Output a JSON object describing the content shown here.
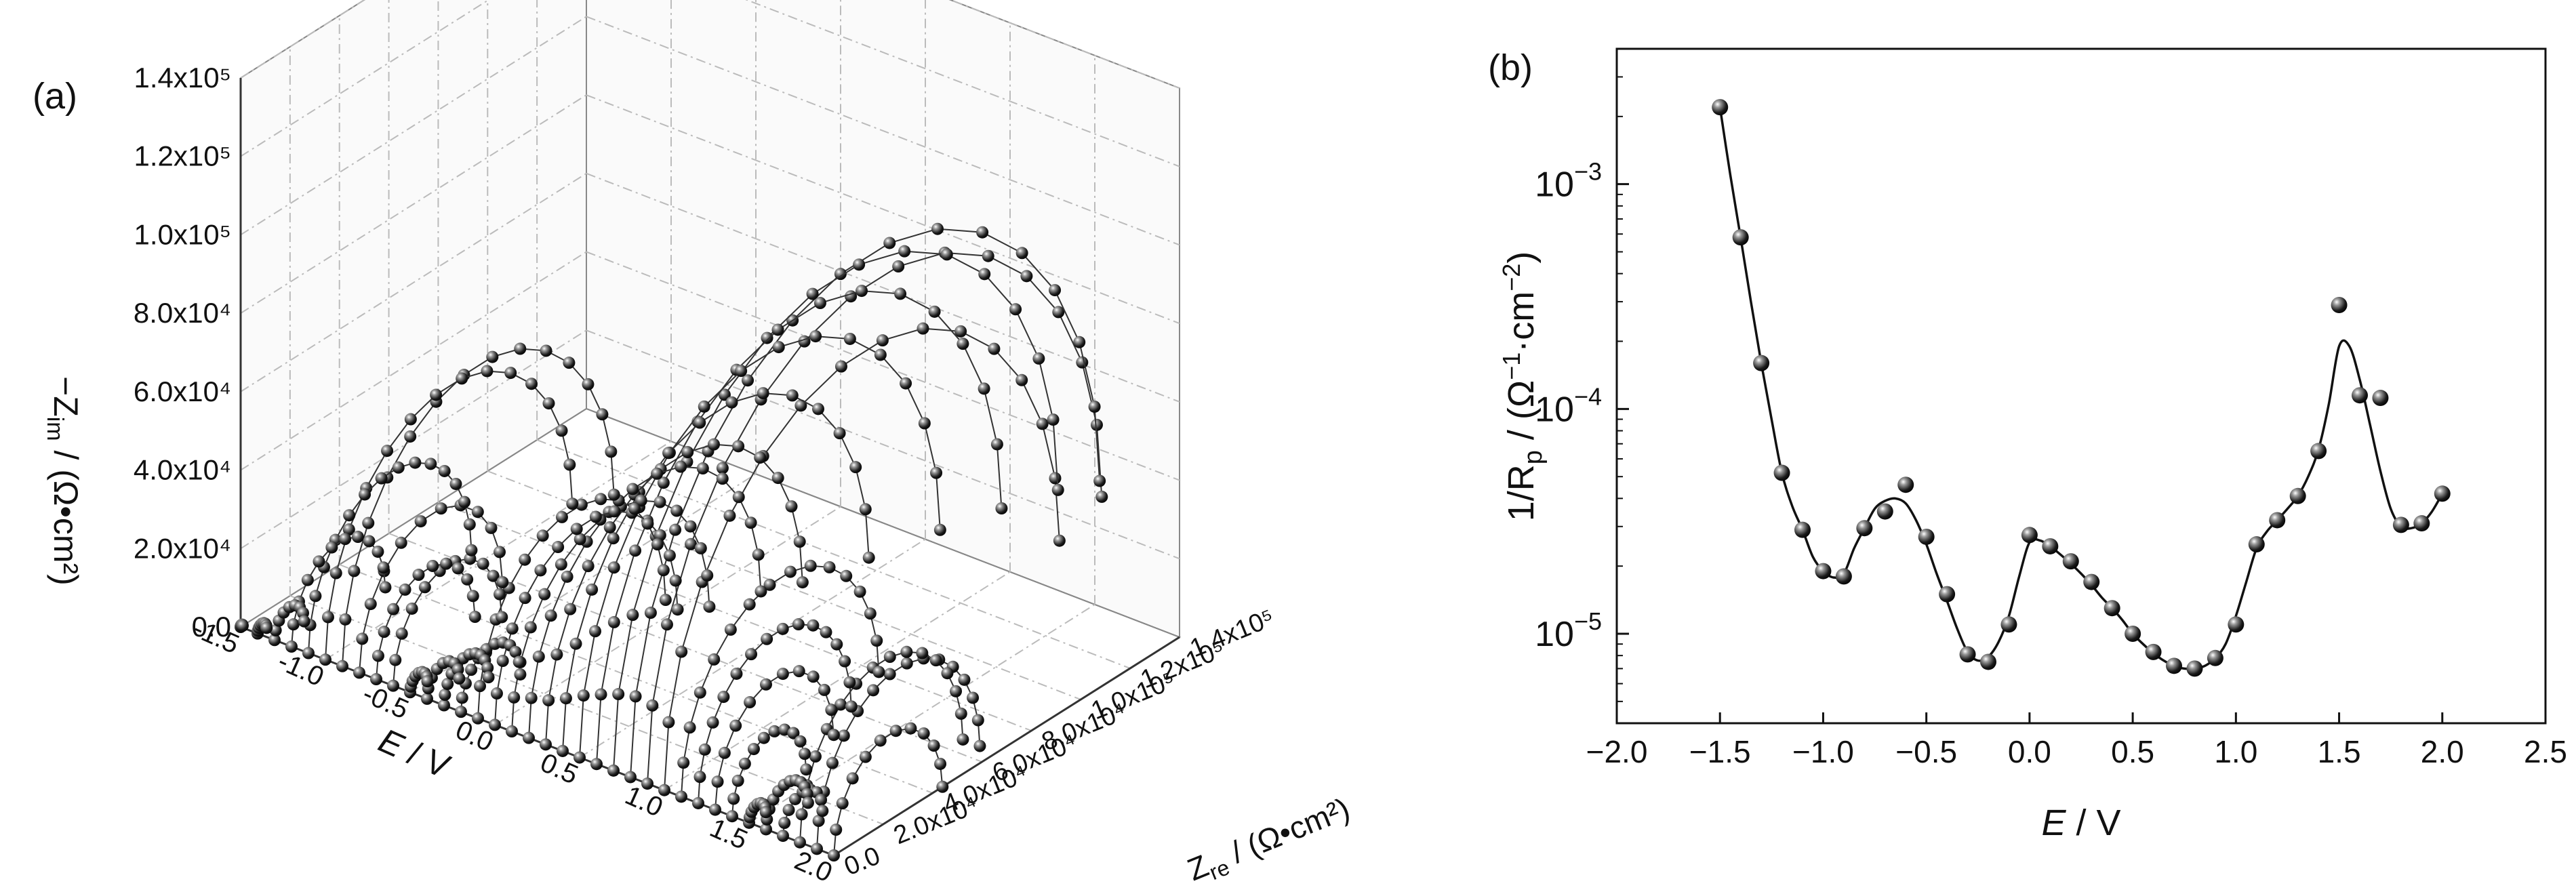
{
  "chart_data": [
    {
      "panel": "(a)",
      "type": "scatter",
      "projection": "3d",
      "x_axis": {
        "label_main": "E",
        "label_unit": " / V",
        "ticks": [
          "-1.5",
          "-1.0",
          "-0.5",
          "0.0",
          "0.5",
          "1.0",
          "1.5",
          "2.0"
        ],
        "range": [
          -1.5,
          2.0
        ]
      },
      "y_axis": {
        "label_main": "Z",
        "label_sub": "re",
        "label_unit": " / (Ω•cm²)",
        "ticks": [
          "0.0",
          "2.0x10⁴",
          "4.0x10⁴",
          "6.0x10⁴",
          "8.0x10⁴",
          "1.0x10⁵",
          "1.2x10⁵",
          "1.4x10⁵"
        ],
        "range": [
          0,
          140000
        ]
      },
      "z_axis": {
        "label_main": "−Z",
        "label_sub": "im",
        "label_unit": " / (Ω•cm²)",
        "ticks": [
          "0.0",
          "2.0x10⁴",
          "4.0x10⁴",
          "6.0x10⁴",
          "8.0x10⁴",
          "1.0x10⁵",
          "1.2x10⁵",
          "1.4x10⁵"
        ],
        "range": [
          0,
          140000
        ]
      },
      "grid": true,
      "potentials": [
        -1.5,
        -1.4,
        -1.3,
        -1.2,
        -1.1,
        -1.0,
        -0.9,
        -0.8,
        -0.7,
        -0.6,
        -0.5,
        -0.4,
        -0.3,
        -0.2,
        -0.1,
        0.0,
        0.1,
        0.2,
        0.3,
        0.4,
        0.5,
        0.6,
        0.7,
        0.8,
        0.9,
        1.0,
        1.1,
        1.2,
        1.3,
        1.4,
        1.5,
        1.6,
        1.7,
        1.8,
        1.9,
        2.0
      ],
      "arc_peak_Zim": [
        400,
        1800,
        6000,
        19000,
        33000,
        50000,
        55000,
        29000,
        20000,
        22000,
        3500,
        6500,
        9000,
        12000,
        38000,
        37000,
        40000,
        47000,
        52000,
        62000,
        73000,
        82000,
        90000,
        95000,
        92000,
        80000,
        40000,
        31000,
        24000,
        15000,
        3400,
        8500,
        8000,
        33000,
        33000,
        22000
      ],
      "note_peak_Zim": "Each arc is drawn over Zre from 0 to twice its peak -Zim value."
    },
    {
      "panel": "(b)",
      "type": "line",
      "x_axis": {
        "label_main": "E",
        "label_unit": " / V",
        "ticks": [
          "−2.0",
          "−1.5",
          "−1.0",
          "−0.5",
          "0.0",
          "0.5",
          "1.0",
          "1.5",
          "2.0",
          "2.5"
        ],
        "tick_values": [
          -2.0,
          -1.5,
          -1.0,
          -0.5,
          0.0,
          0.5,
          1.0,
          1.5,
          2.0,
          2.5
        ],
        "range": [
          -2.0,
          2.5
        ]
      },
      "y_axis": {
        "label_main": "1/R",
        "label_sub": "p",
        "label_unit": " / (Ω",
        "label_sup1": "−1",
        "label_mid": "·cm",
        "label_sup2": "−2",
        "label_end": ")",
        "scale": "log",
        "range": [
          4e-06,
          0.004
        ],
        "ticks": [
          {
            "base": "10",
            "exp": "−5",
            "value": 1e-05
          },
          {
            "base": "10",
            "exp": "−4",
            "value": 0.0001
          },
          {
            "base": "10",
            "exp": "−3",
            "value": 0.001
          }
        ]
      },
      "points": {
        "x": [
          -1.5,
          -1.4,
          -1.3,
          -1.2,
          -1.1,
          -1.0,
          -0.9,
          -0.8,
          -0.7,
          -0.6,
          -0.5,
          -0.4,
          -0.3,
          -0.2,
          -0.1,
          0.0,
          0.1,
          0.2,
          0.3,
          0.4,
          0.5,
          0.6,
          0.7,
          0.8,
          0.9,
          1.0,
          1.1,
          1.2,
          1.3,
          1.4,
          1.5,
          1.6,
          1.7,
          1.8,
          1.9,
          2.0
        ],
        "y": [
          0.0022,
          0.00058,
          0.00016,
          5.2e-05,
          2.9e-05,
          1.9e-05,
          1.8e-05,
          2.95e-05,
          3.5e-05,
          4.6e-05,
          2.7e-05,
          1.5e-05,
          8.1e-06,
          7.5e-06,
          1.1e-05,
          2.75e-05,
          2.45e-05,
          2.1e-05,
          1.7e-05,
          1.3e-05,
          1e-05,
          8.3e-06,
          7.2e-06,
          7e-06,
          7.8e-06,
          1.1e-05,
          2.5e-05,
          3.2e-05,
          4.1e-05,
          6.5e-05,
          0.00029,
          0.000115,
          0.000112,
          3.05e-05,
          3.1e-05,
          4.2e-05
        ]
      },
      "fit_curve": {
        "x": [
          -1.5,
          -1.45,
          -1.4,
          -1.35,
          -1.3,
          -1.25,
          -1.2,
          -1.15,
          -1.1,
          -1.05,
          -1.0,
          -0.95,
          -0.9,
          -0.85,
          -0.8,
          -0.75,
          -0.7,
          -0.65,
          -0.6,
          -0.55,
          -0.5,
          -0.45,
          -0.4,
          -0.35,
          -0.3,
          -0.25,
          -0.2,
          -0.15,
          -0.1,
          -0.05,
          0.0,
          0.05,
          0.1,
          0.15,
          0.2,
          0.25,
          0.3,
          0.35,
          0.4,
          0.45,
          0.5,
          0.55,
          0.6,
          0.65,
          0.7,
          0.75,
          0.8,
          0.85,
          0.9,
          0.95,
          1.0,
          1.05,
          1.1,
          1.15,
          1.2,
          1.25,
          1.3,
          1.35,
          1.4,
          1.45,
          1.5,
          1.55,
          1.6,
          1.65,
          1.7,
          1.75,
          1.8,
          1.85,
          1.9,
          1.95,
          2.0
        ],
        "y": [
          0.0022,
          0.0011,
          0.00058,
          0.0003,
          0.00016,
          9e-05,
          5.2e-05,
          3.7e-05,
          2.9e-05,
          2.2e-05,
          1.9e-05,
          1.78e-05,
          1.85e-05,
          2.4e-05,
          2.95e-05,
          3.6e-05,
          3.9e-05,
          4e-05,
          3.8e-05,
          3.2e-05,
          2.5e-05,
          1.85e-05,
          1.4e-05,
          1.05e-05,
          8.3e-06,
          7.6e-06,
          7.9e-06,
          9.2e-06,
          1.2e-05,
          1.8e-05,
          2.55e-05,
          2.6e-05,
          2.45e-05,
          2.25e-05,
          2.05e-05,
          1.85e-05,
          1.65e-05,
          1.45e-05,
          1.3e-05,
          1.15e-05,
          1e-05,
          9e-06,
          8.2e-06,
          7.6e-06,
          7.2e-06,
          7e-06,
          7e-06,
          7.2e-06,
          7.8e-06,
          9e-06,
          1.2e-05,
          1.7e-05,
          2.4e-05,
          2.85e-05,
          3.2e-05,
          3.6e-05,
          4.1e-05,
          5e-05,
          6.6e-05,
          0.000105,
          0.00019,
          0.00019,
          0.000135,
          8.5e-05,
          5.3e-05,
          3.6e-05,
          3e-05,
          2.95e-05,
          3.1e-05,
          3.5e-05,
          4.2e-05
        ]
      },
      "grid": false
    }
  ]
}
